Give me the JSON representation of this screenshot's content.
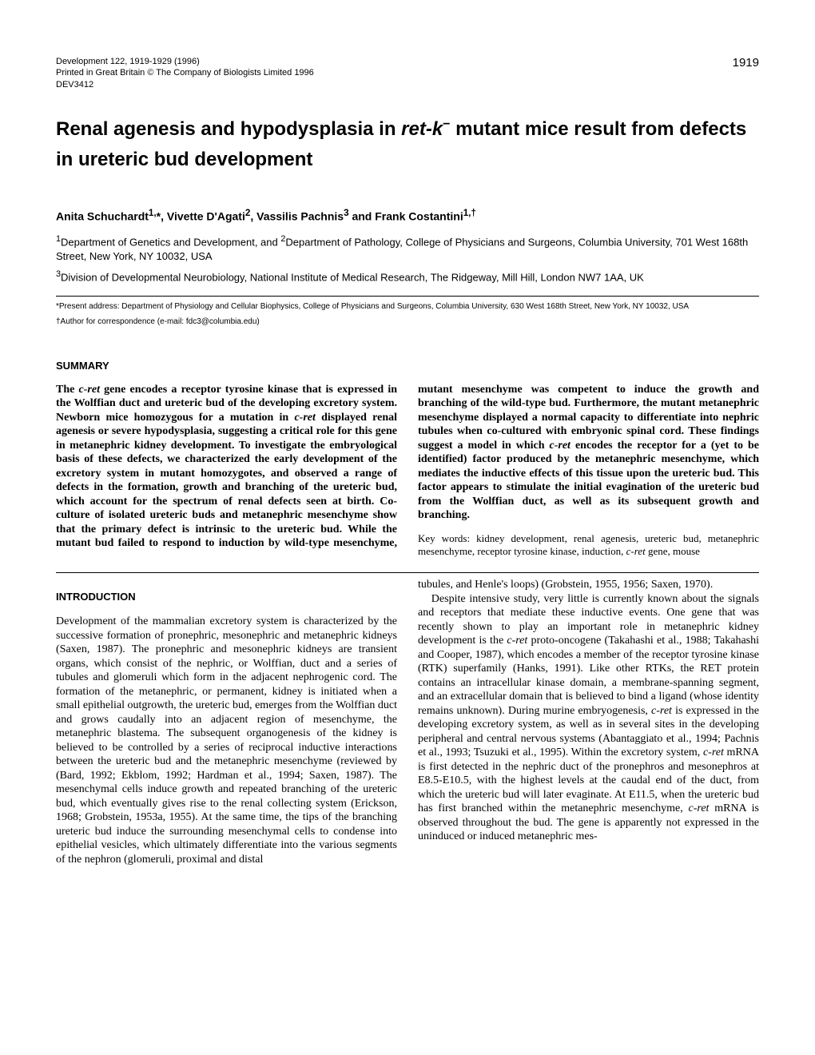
{
  "page_number": "1919",
  "header": {
    "line1": "Development 122, 1919-1929 (1996)",
    "line2": "Printed in Great Britain © The Company of Biologists Limited 1996",
    "line3": "DEV3412"
  },
  "title": {
    "pre": "Renal agenesis and hypodysplasia in ",
    "ital": "ret-k",
    "sup": "−",
    "post": " mutant mice result from defects in ureteric bud development"
  },
  "authors_html": "Anita Schuchardt<sup>1,</sup>*, Vivette D'Agati<sup>2</sup>, Vassilis Pachnis<sup>3</sup> and Frank Costantini<sup>1,†</sup>",
  "affiliations": [
    "<sup>1</sup>Department of Genetics and Development, and <sup>2</sup>Department of Pathology, College of Physicians and Surgeons, Columbia University, 701 West 168th Street, New York, NY 10032, USA",
    "<sup>3</sup>Division of Developmental Neurobiology, National Institute of Medical Research, The Ridgeway, Mill Hill, London NW7 1AA, UK"
  ],
  "present_address": "*Present address: Department of Physiology and Cellular Biophysics, College of Physicians and Surgeons, Columbia University, 630 West 168th Street, New York, NY 10032, USA",
  "corresponding": "†Author for correspondence (e-mail: fdc3@columbia.edu)",
  "summary_head": "SUMMARY",
  "summary_para": "The <span class=\"ital\">c-ret</span> gene encodes a receptor tyrosine kinase that is expressed in the Wolffian duct and ureteric bud of the developing excretory system. Newborn mice homozygous for a mutation in <span class=\"ital\">c-ret</span> displayed renal agenesis or severe hypodysplasia, suggesting a critical role for this gene in metanephric kidney development. To investigate the embryological basis of these defects, we characterized the early development of the excretory system in mutant homozygotes, and observed a range of defects in the formation, growth and branching of the ureteric bud, which account for the spectrum of renal defects seen at birth. Co-culture of isolated ureteric buds and metanephric mesenchyme show that the primary defect is intrinsic to the ureteric bud. While the mutant bud failed to respond to induction by wild-type mesenchyme, mutant mesenchyme was competent to induce the growth and branching of the wild-type bud. Furthermore, the mutant metanephric mesenchyme displayed a normal capacity to differentiate into nephric tubules when co-cultured with embryonic spinal cord. These findings suggest a model in which <span class=\"ital\">c-ret</span> encodes the receptor for a (yet to be identified) factor produced by the metanephric mesenchyme, which mediates the inductive effects of this tissue upon the ureteric bud. This factor appears to stimulate the initial evagination of the ureteric bud from the Wolffian duct, as well as its subsequent growth and branching.",
  "keywords": "Key words: kidney development, renal agenesis, ureteric bud, metanephric mesenchyme, receptor tyrosine kinase, induction, <span class=\"ital\">c-ret</span> gene, mouse",
  "intro_head": "INTRODUCTION",
  "intro_col1": "Development of the mammalian excretory system is characterized by the successive formation of pronephric, mesonephric and metanephric kidneys (Saxen, 1987). The pronephric and mesonephric kidneys are transient organs, which consist of the nephric, or Wolffian, duct and a series of tubules and glomeruli which form in the adjacent nephrogenic cord. The formation of the metanephric, or permanent, kidney is initiated when a small epithelial outgrowth, the ureteric bud, emerges from the Wolffian duct and grows caudally into an adjacent region of mesenchyme, the metanephric blastema. The subsequent organogenesis of the kidney is believed to be controlled by a series of reciprocal inductive interactions between the ureteric bud and the metanephric mesenchyme (reviewed by (Bard, 1992; Ekblom, 1992; Hardman et al., 1994; Saxen, 1987). The mesenchymal cells induce growth and repeated branching of the ureteric bud, which eventually gives rise to the renal collecting system (Erickson, 1968; Grobstein, 1953a, 1955). At the same time, the tips of the branching ureteric bud induce the surrounding mesenchymal cells to condense into epithelial vesicles, which ultimately differentiate into the various segments of the nephron (glomeruli, proximal and distal",
  "intro_col2_p1": "tubules, and Henle's loops) (Grobstein, 1955, 1956; Saxen, 1970).",
  "intro_col2_p2": "Despite intensive study, very little is currently known about the signals and receptors that mediate these inductive events. One gene that was recently shown to play an important role in metanephric kidney development is the <span class=\"ital\">c-ret</span> proto-oncogene (Takahashi et al., 1988; Takahashi and Cooper, 1987), which encodes a member of the receptor tyrosine kinase (RTK) superfamily (Hanks, 1991). Like other RTKs, the RET protein contains an intracellular kinase domain, a membrane-spanning segment, and an extracellular domain that is believed to bind a ligand (whose identity remains unknown). During murine embryogenesis, <span class=\"ital\">c-ret</span> is expressed in the developing excretory system, as well as in several sites in the developing peripheral and central nervous systems (Abantaggiato et al., 1994; Pachnis et al., 1993; Tsuzuki et al., 1995). Within the excretory system, <span class=\"ital\">c-ret</span> mRNA is first detected in the nephric duct of the pronephros and mesonephros at E8.5-E10.5, with the highest levels at the caudal end of the duct, from which the ureteric bud will later evaginate. At E11.5, when the ureteric bud has first branched within the metanephric mesenchyme, <span class=\"ital\">c-ret</span> mRNA is observed throughout the bud. The gene is apparently not expressed in the uninduced or induced metanephric mes-"
}
